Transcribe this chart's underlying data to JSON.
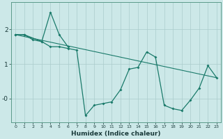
{
  "xlabel": "Humidex (Indice chaleur)",
  "bg_color": "#cce8e8",
  "grid_color": "#aacccc",
  "line_color": "#1a7a6a",
  "ylim": [
    -0.7,
    2.8
  ],
  "xlim": [
    -0.5,
    23.5
  ],
  "ytick_vals": [
    0.0,
    1.0,
    2.0
  ],
  "ytick_labels": [
    "-0",
    "1",
    "2"
  ],
  "line_main_x": [
    0,
    1,
    3,
    4,
    5,
    6,
    7,
    8,
    9,
    10,
    11,
    12,
    13,
    14,
    15,
    16,
    17,
    18,
    19,
    20,
    21,
    22,
    23
  ],
  "line_main_y": [
    1.85,
    1.85,
    1.65,
    1.5,
    1.5,
    1.45,
    1.4,
    -0.5,
    -0.2,
    -0.15,
    -0.1,
    0.25,
    0.85,
    0.9,
    1.35,
    1.2,
    -0.2,
    -0.3,
    -0.35,
    -0.05,
    0.3,
    0.95,
    0.6
  ],
  "line_peak_x": [
    0,
    1,
    2,
    3,
    4,
    5,
    6
  ],
  "line_peak_y": [
    1.85,
    1.85,
    1.7,
    1.65,
    2.5,
    1.85,
    1.5
  ],
  "line_trend_x": [
    0,
    23
  ],
  "line_trend_y": [
    1.85,
    0.6
  ]
}
